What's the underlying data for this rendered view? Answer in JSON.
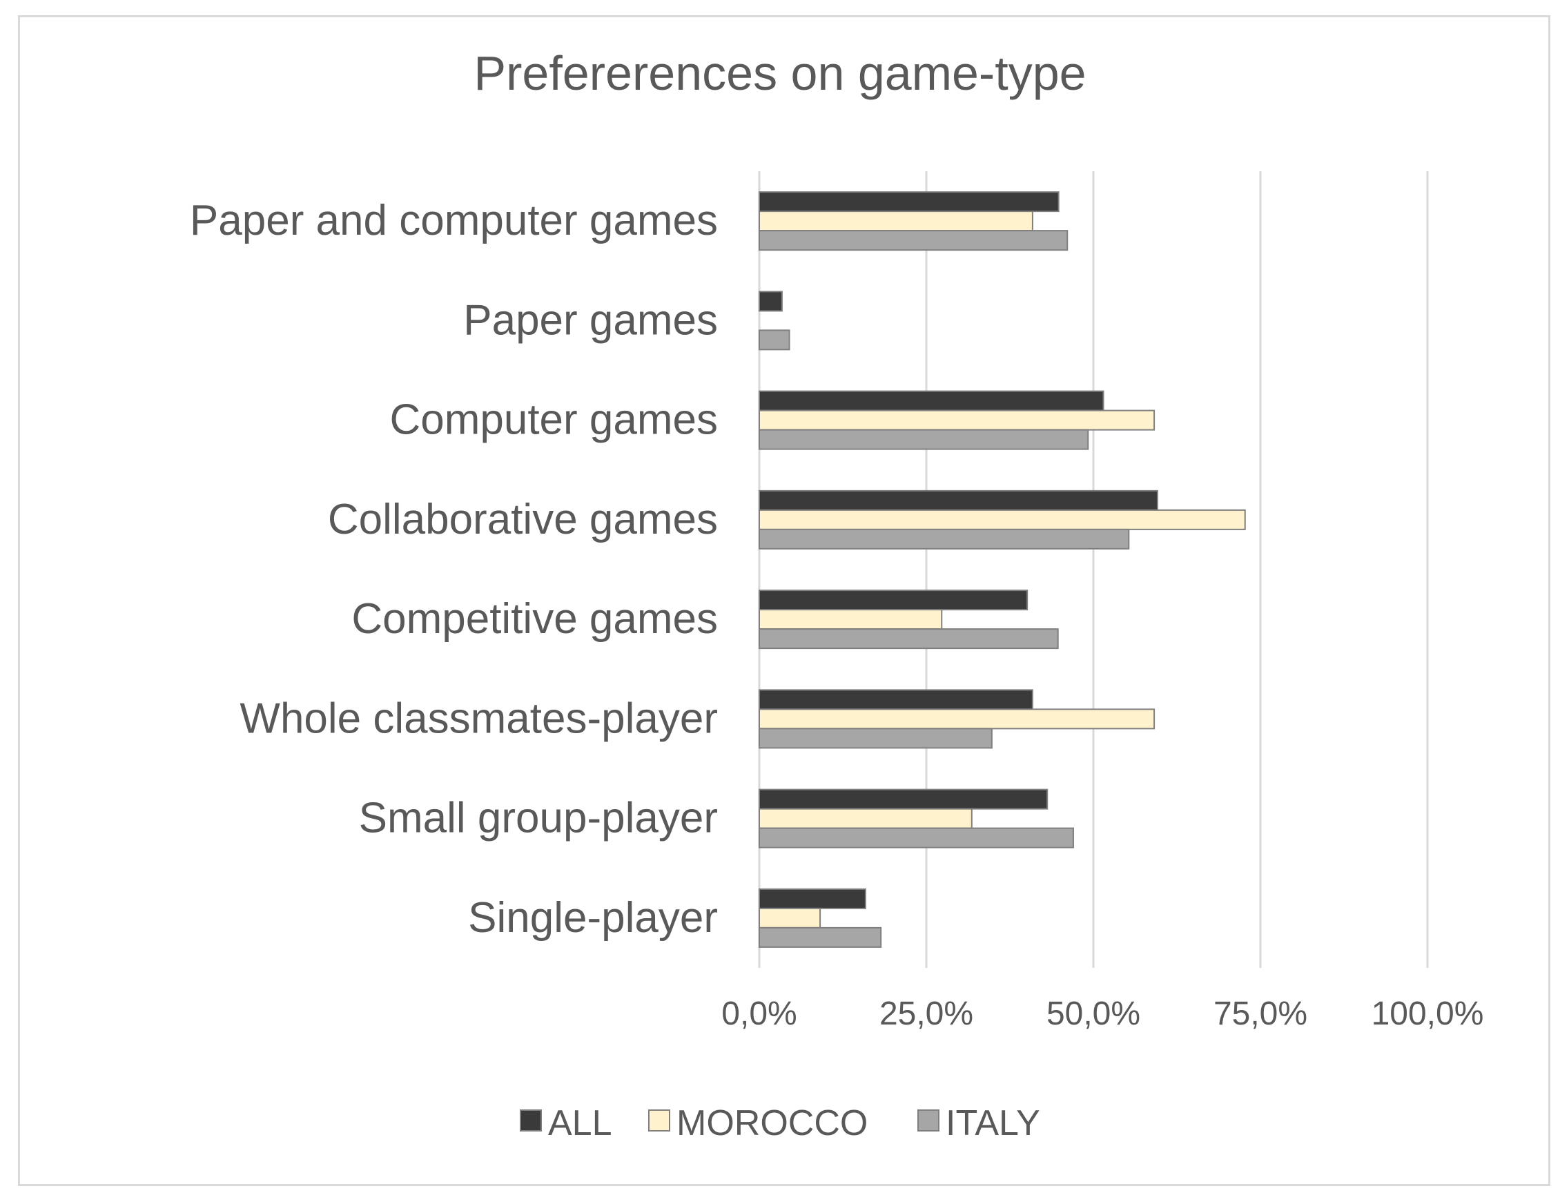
{
  "chart_data": {
    "type": "bar",
    "orientation": "horizontal",
    "title": "Prefererences on game-type",
    "categories": [
      "Paper and computer games",
      "Paper games",
      "Computer games",
      "Collaborative games",
      "Competitive games",
      "Whole classmates-player",
      "Small group-player",
      "Single-player"
    ],
    "series": [
      {
        "name": "ALL",
        "color": "#3a3a3a",
        "values": [
          44.8,
          3.4,
          51.5,
          59.6,
          40.1,
          40.9,
          43.1,
          15.9
        ]
      },
      {
        "name": "MOROCCO",
        "color": "#fff2cc",
        "values": [
          40.9,
          0,
          59.1,
          72.7,
          27.3,
          59.1,
          31.8,
          9.1
        ]
      },
      {
        "name": "ITALY",
        "color": "#a6a6a6",
        "values": [
          46.1,
          4.5,
          49.2,
          55.3,
          44.7,
          34.8,
          47.0,
          18.2
        ]
      }
    ],
    "xlim": [
      0,
      100
    ],
    "xticks": [
      "0,0%",
      "25,0%",
      "50,0%",
      "75,0%",
      "100,0%"
    ],
    "xtick_values": [
      0,
      25,
      50,
      75,
      100
    ],
    "grid": true,
    "legend_position": "bottom"
  }
}
